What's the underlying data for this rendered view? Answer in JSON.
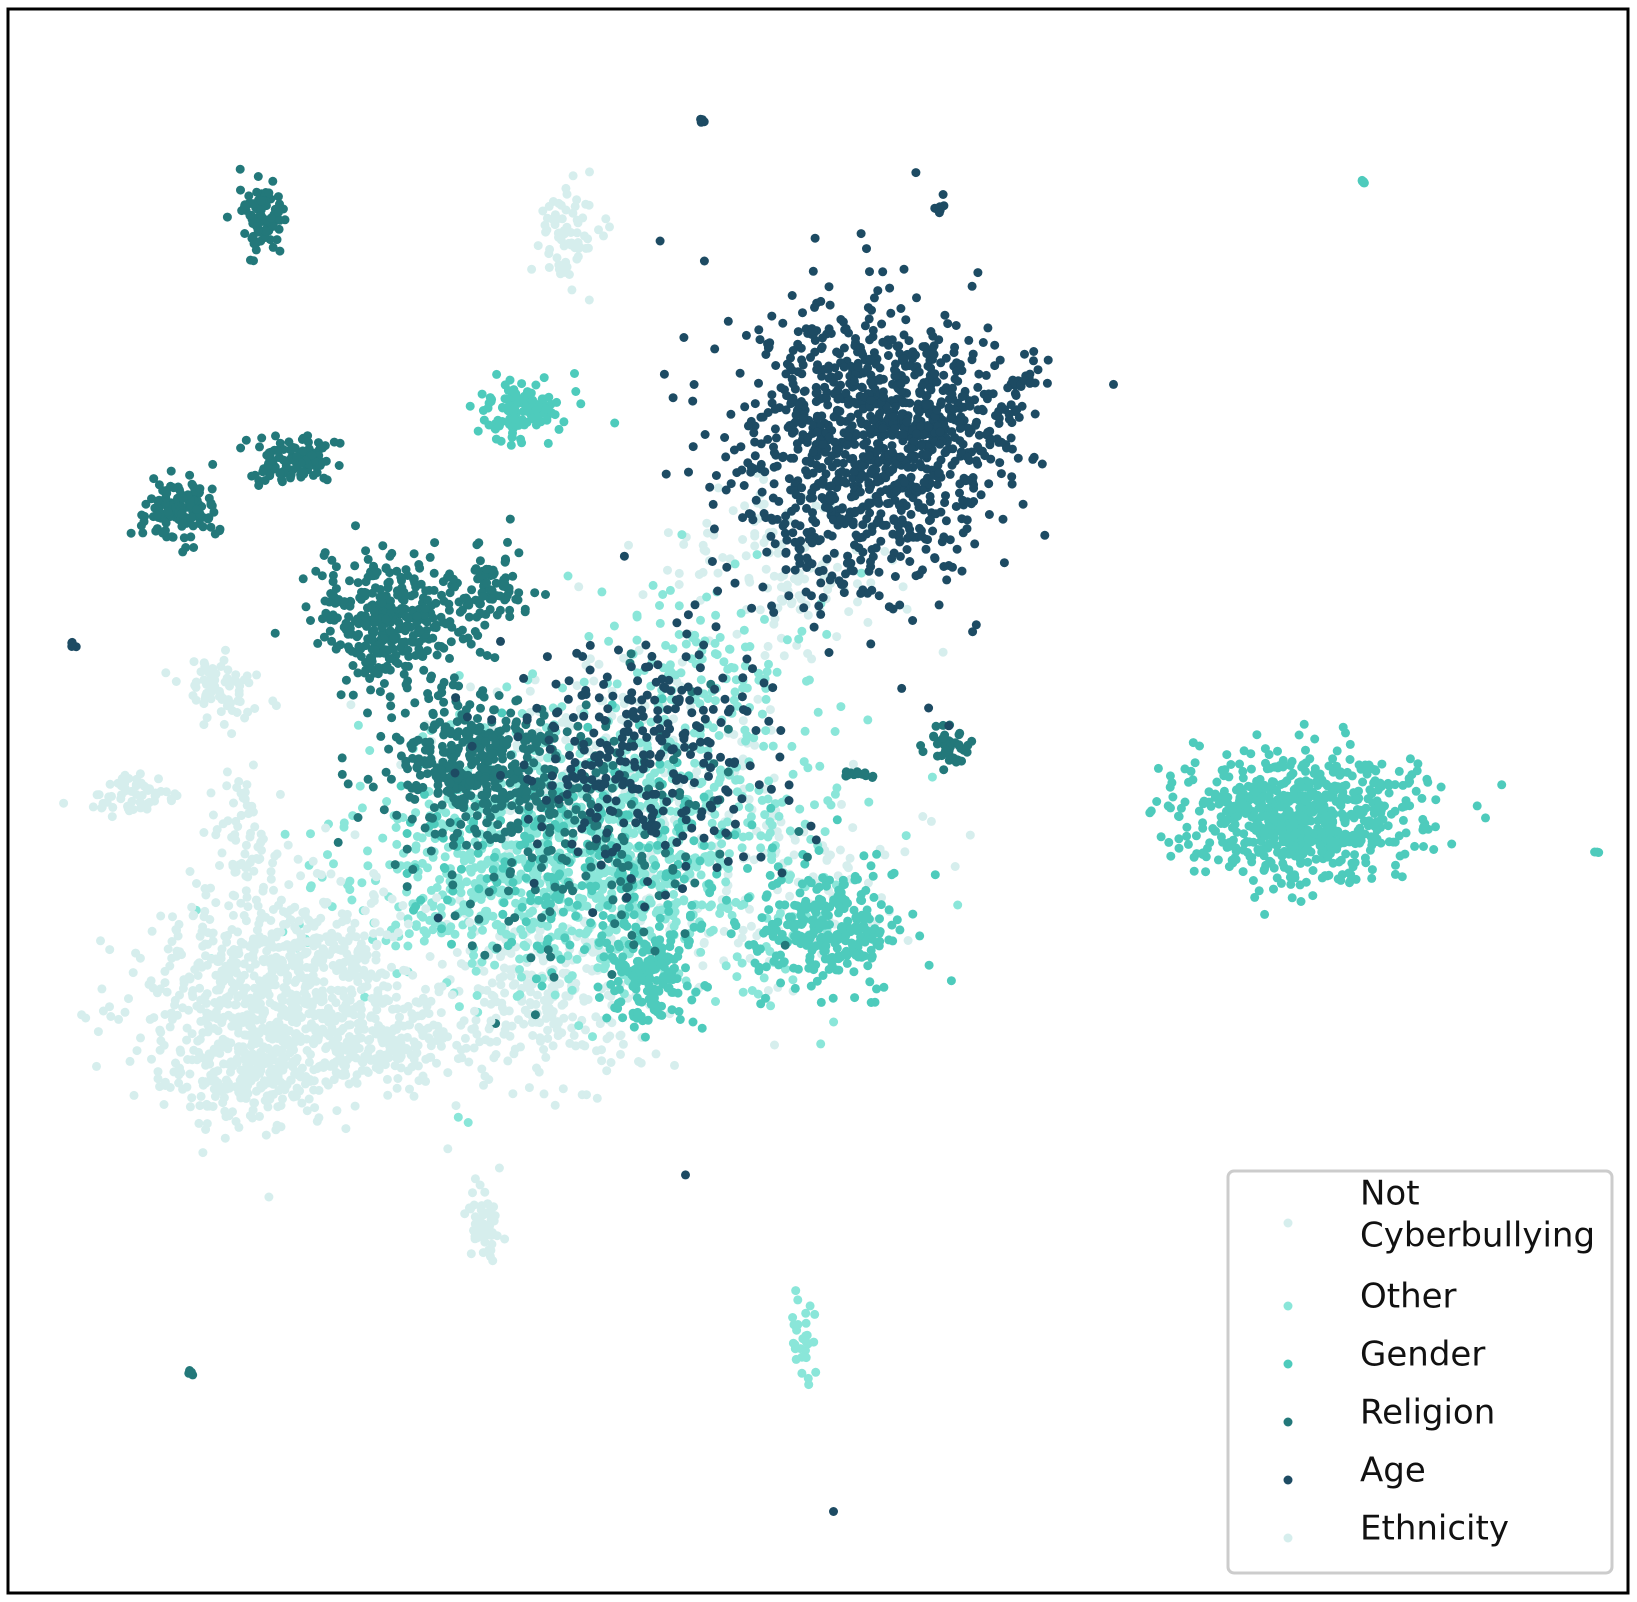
{
  "chart_data": {
    "type": "scatter",
    "title": "",
    "xlabel": "",
    "ylabel": "",
    "grid": false,
    "axes_ticks": false,
    "legend_placement": "bottom-right",
    "xlim": [
      0,
      100
    ],
    "ylim": [
      0,
      100
    ],
    "series": [
      {
        "name": "Not\nCyberbullying",
        "legend_lines": [
          "Not",
          "Cyberbullying"
        ],
        "color": "#d6eeed",
        "clusters": [
          {
            "cx": 33.0,
            "cy": 37.0,
            "sx": 3.0,
            "sy": 3.0,
            "n": 260
          },
          {
            "cx": 37.0,
            "cy": 52.0,
            "sx": 5.0,
            "sy": 3.5,
            "n": 220
          },
          {
            "cx": 47.0,
            "cy": 65.0,
            "sx": 4.0,
            "sy": 3.0,
            "n": 120
          },
          {
            "cx": 50.0,
            "cy": 46.0,
            "sx": 3.0,
            "sy": 2.0,
            "n": 60
          },
          {
            "cx": 42.0,
            "cy": 42.0,
            "sx": 4.0,
            "sy": 3.0,
            "n": 80
          }
        ]
      },
      {
        "name": "Other",
        "color": "#8ae6d9",
        "clusters": [
          {
            "cx": 37.0,
            "cy": 47.5,
            "sx": 6.5,
            "sy": 4.5,
            "n": 700
          },
          {
            "cx": 30.0,
            "cy": 44.0,
            "sx": 6.0,
            "sy": 3.5,
            "n": 250
          },
          {
            "cx": 44.0,
            "cy": 58.0,
            "sx": 3.5,
            "sy": 3.5,
            "n": 140
          },
          {
            "cx": 48.9,
            "cy": 16.0,
            "sx": 0.4,
            "sy": 1.3,
            "n": 30
          }
        ]
      },
      {
        "name": "Gender",
        "color": "#4ecbbc",
        "clusters": [
          {
            "cx": 80.0,
            "cy": 49.0,
            "sx": 3.7,
            "sy": 2.0,
            "n": 700
          },
          {
            "cx": 50.5,
            "cy": 42.0,
            "sx": 2.3,
            "sy": 1.8,
            "n": 280
          },
          {
            "cx": 39.5,
            "cy": 39.0,
            "sx": 1.3,
            "sy": 1.8,
            "n": 160
          },
          {
            "cx": 31.5,
            "cy": 74.5,
            "sx": 1.5,
            "sy": 0.9,
            "n": 110
          },
          {
            "cx": 36.0,
            "cy": 46.0,
            "sx": 5.0,
            "sy": 3.5,
            "n": 260
          },
          {
            "cx": 83.8,
            "cy": 89.2,
            "sx": 0.15,
            "sy": 0.15,
            "n": 5
          },
          {
            "cx": 98.3,
            "cy": 46.8,
            "sx": 0.15,
            "sy": 0.1,
            "n": 4
          }
        ]
      },
      {
        "name": "Religion",
        "color": "#23787a",
        "clusters": [
          {
            "cx": 23.5,
            "cy": 61.5,
            "sx": 2.3,
            "sy": 2.0,
            "n": 360
          },
          {
            "cx": 29.0,
            "cy": 52.5,
            "sx": 2.7,
            "sy": 2.2,
            "n": 360
          },
          {
            "cx": 10.5,
            "cy": 68.5,
            "sx": 1.3,
            "sy": 1.0,
            "n": 130
          },
          {
            "cx": 17.5,
            "cy": 71.5,
            "sx": 1.3,
            "sy": 0.8,
            "n": 110
          },
          {
            "cx": 15.5,
            "cy": 87.0,
            "sx": 0.7,
            "sy": 1.0,
            "n": 90
          },
          {
            "cx": 30.0,
            "cy": 63.5,
            "sx": 1.2,
            "sy": 1.2,
            "n": 80
          },
          {
            "cx": 58.0,
            "cy": 53.5,
            "sx": 0.8,
            "sy": 0.6,
            "n": 45
          },
          {
            "cx": 52.5,
            "cy": 51.7,
            "sx": 0.6,
            "sy": 0.2,
            "n": 15
          },
          {
            "cx": 11.2,
            "cy": 13.8,
            "sx": 0.1,
            "sy": 0.15,
            "n": 4
          },
          {
            "cx": 34.0,
            "cy": 48.0,
            "sx": 5.0,
            "sy": 4.0,
            "n": 200
          }
        ]
      },
      {
        "name": "Age",
        "color": "#1d4b63",
        "clusters": [
          {
            "cx": 52.5,
            "cy": 72.5,
            "sx": 4.0,
            "sy": 4.8,
            "n": 900
          },
          {
            "cx": 57.5,
            "cy": 74.0,
            "sx": 3.5,
            "sy": 3.0,
            "n": 250
          },
          {
            "cx": 38.5,
            "cy": 53.0,
            "sx": 4.5,
            "sy": 4.0,
            "n": 300
          },
          {
            "cx": 57.4,
            "cy": 87.7,
            "sx": 0.2,
            "sy": 0.5,
            "n": 8
          },
          {
            "cx": 42.8,
            "cy": 93.0,
            "sx": 0.1,
            "sy": 0.1,
            "n": 4
          },
          {
            "cx": 3.8,
            "cy": 60.0,
            "sx": 0.2,
            "sy": 0.1,
            "n": 4
          },
          {
            "cx": 41.8,
            "cy": 26.2,
            "sx": 0.05,
            "sy": 0.05,
            "n": 1
          },
          {
            "cx": 50.9,
            "cy": 5.0,
            "sx": 0.05,
            "sy": 0.05,
            "n": 1
          },
          {
            "cx": 62.5,
            "cy": 76.5,
            "sx": 0.4,
            "sy": 0.2,
            "n": 15
          }
        ]
      },
      {
        "name": "Ethnicity",
        "color": "#d6eeed",
        "clusters": [
          {
            "cx": 16.5,
            "cy": 38.5,
            "sx": 4.0,
            "sy": 3.2,
            "n": 700
          },
          {
            "cx": 14.5,
            "cy": 33.0,
            "sx": 2.5,
            "sy": 1.8,
            "n": 260
          },
          {
            "cx": 23.0,
            "cy": 35.0,
            "sx": 2.5,
            "sy": 1.5,
            "n": 200
          },
          {
            "cx": 34.5,
            "cy": 86.0,
            "sx": 1.0,
            "sy": 1.5,
            "n": 70
          },
          {
            "cx": 29.3,
            "cy": 23.0,
            "sx": 0.6,
            "sy": 1.4,
            "n": 55
          },
          {
            "cx": 13.0,
            "cy": 57.0,
            "sx": 1.2,
            "sy": 1.0,
            "n": 70
          },
          {
            "cx": 7.5,
            "cy": 50.5,
            "sx": 1.5,
            "sy": 0.6,
            "n": 60
          },
          {
            "cx": 14.5,
            "cy": 48.0,
            "sx": 1.0,
            "sy": 1.8,
            "n": 60
          }
        ]
      }
    ]
  }
}
